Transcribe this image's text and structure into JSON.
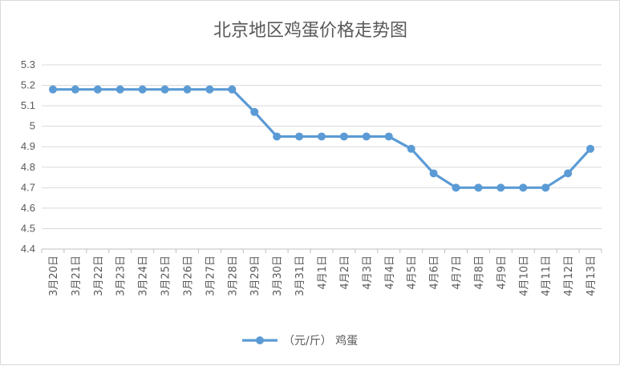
{
  "chart_data": {
    "type": "line",
    "title": "北京地区鸡蛋价格走势图",
    "xlabel": "",
    "ylabel": "",
    "categories": [
      "3月20日",
      "3月21日",
      "3月22日",
      "3月23日",
      "3月24日",
      "3月25日",
      "3月26日",
      "3月27日",
      "3月28日",
      "3月29日",
      "3月30日",
      "3月31日",
      "4月1日",
      "4月2日",
      "4月3日",
      "4月4日",
      "4月5日",
      "4月6日",
      "4月7日",
      "4月8日",
      "4月9日",
      "4月10日",
      "4月11日",
      "4月12日",
      "4月13日"
    ],
    "ylim": [
      4.4,
      5.3
    ],
    "yticks": [
      "5.3",
      "5.2",
      "5.1",
      "5",
      "4.9",
      "4.8",
      "4.7",
      "4.6",
      "4.5",
      "4.4"
    ],
    "grid": true,
    "legend_position": "bottom",
    "series": [
      {
        "name": "（元/斤） 鸡蛋",
        "color": "#5b9bd5",
        "values": [
          5.18,
          5.18,
          5.18,
          5.18,
          5.18,
          5.18,
          5.18,
          5.18,
          5.18,
          5.07,
          4.95,
          4.95,
          4.95,
          4.95,
          4.95,
          4.95,
          4.89,
          4.77,
          4.7,
          4.7,
          4.7,
          4.7,
          4.7,
          4.77,
          4.89
        ]
      }
    ]
  }
}
